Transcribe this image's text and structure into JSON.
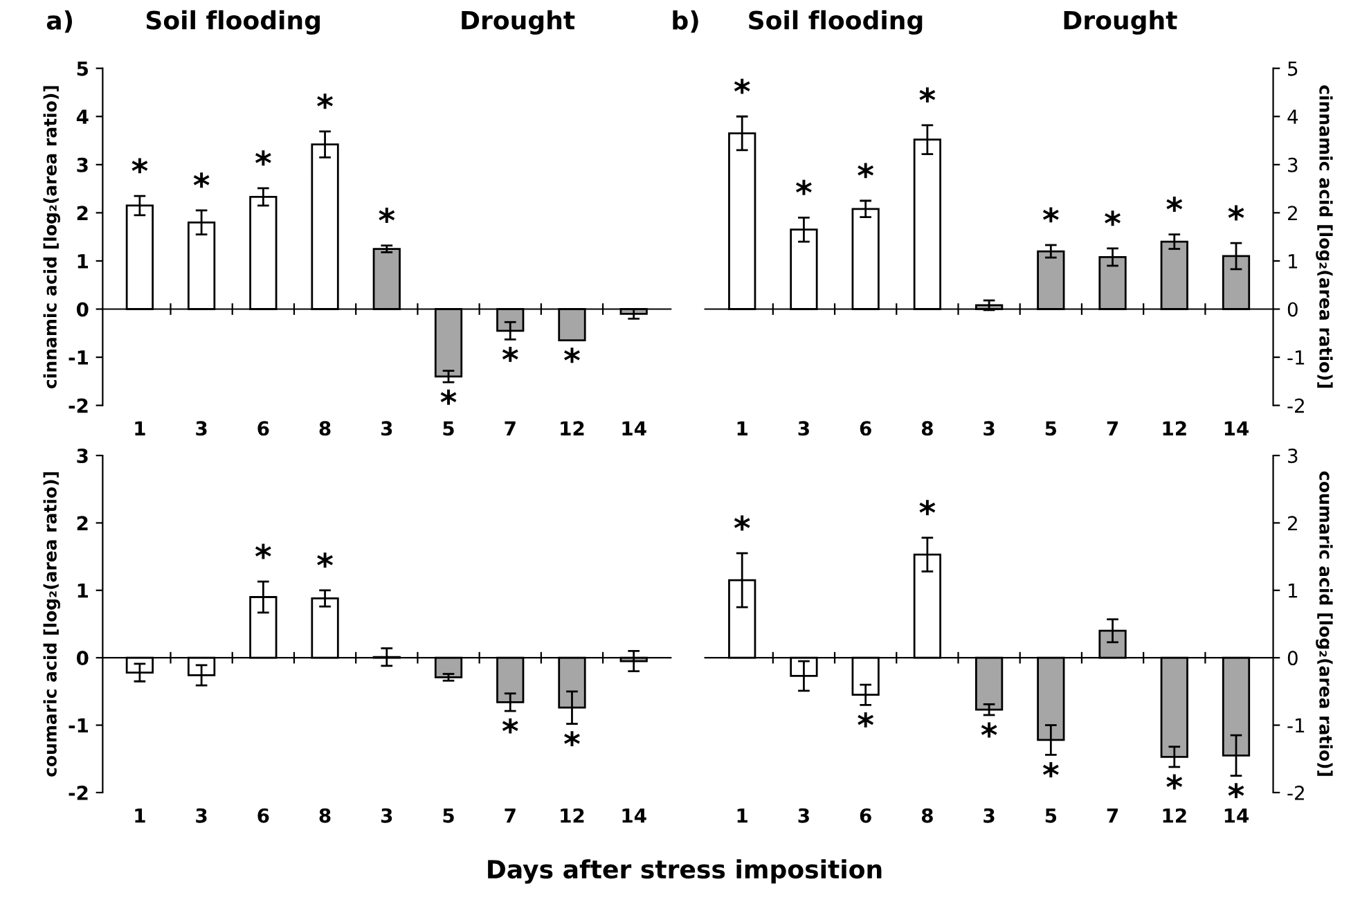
{
  "chart_data": [
    {
      "type": "bar",
      "title": "a)",
      "ylabel": "cinnamic acid [log₂(area ratio)]",
      "annotations": [
        "Soil flooding",
        "Drought"
      ],
      "categories": [
        "1",
        "3",
        "6",
        "8",
        "3",
        "5",
        "7",
        "12",
        "14"
      ],
      "ylim": [
        -2,
        5
      ],
      "yticks": [
        -2,
        -1,
        0,
        1,
        2,
        3,
        4,
        5
      ],
      "series": [
        {
          "values": [
            2.15,
            1.8,
            2.33,
            3.42,
            1.25,
            -1.4,
            -0.45,
            -0.65,
            -0.1
          ],
          "colors": [
            "#ffffff",
            "#ffffff",
            "#ffffff",
            "#ffffff",
            "#a6a6a6",
            "#a6a6a6",
            "#a6a6a6",
            "#a6a6a6",
            "#a6a6a6"
          ],
          "errors": [
            0.2,
            0.25,
            0.18,
            0.27,
            0.07,
            0.12,
            0.18,
            null,
            0.1
          ],
          "value_labels": [
            "*",
            "*",
            "*",
            "*",
            "*",
            "*",
            "*",
            "*",
            null
          ]
        }
      ]
    },
    {
      "type": "bar",
      "title": "b)",
      "y2label": "cinnamic acid [log₂(area ratio)]",
      "annotations": [
        "Soil flooding",
        "Drought"
      ],
      "categories": [
        "1",
        "3",
        "6",
        "8",
        "3",
        "5",
        "7",
        "12",
        "14"
      ],
      "y2lim": [
        -2,
        5
      ],
      "y2ticks": [
        -2,
        -1,
        0,
        1,
        2,
        3,
        4,
        5
      ],
      "series": [
        {
          "axis": "y2",
          "values": [
            3.65,
            1.65,
            2.08,
            3.52,
            0.08,
            1.2,
            1.08,
            1.4,
            1.1
          ],
          "colors": [
            "#ffffff",
            "#ffffff",
            "#ffffff",
            "#ffffff",
            "#a6a6a6",
            "#a6a6a6",
            "#a6a6a6",
            "#a6a6a6",
            "#a6a6a6"
          ],
          "errors": [
            0.35,
            0.25,
            0.17,
            0.3,
            0.1,
            0.13,
            0.18,
            0.15,
            0.27
          ],
          "value_labels": [
            "*",
            "*",
            "*",
            "*",
            null,
            "*",
            "*",
            "*",
            "*"
          ]
        }
      ]
    },
    {
      "type": "bar",
      "ylabel": "coumaric acid [log₂(area ratio)]",
      "xlabel": "Days after stress imposition",
      "categories": [
        "1",
        "3",
        "6",
        "8",
        "3",
        "5",
        "7",
        "12",
        "14"
      ],
      "ylim": [
        -2,
        3
      ],
      "yticks": [
        -2,
        -1,
        0,
        1,
        2,
        3
      ],
      "series": [
        {
          "values": [
            -0.22,
            -0.26,
            0.9,
            0.88,
            0.01,
            -0.29,
            -0.66,
            -0.74,
            -0.05
          ],
          "colors": [
            "#ffffff",
            "#ffffff",
            "#ffffff",
            "#ffffff",
            "#a6a6a6",
            "#a6a6a6",
            "#a6a6a6",
            "#a6a6a6",
            "#a6a6a6"
          ],
          "errors": [
            0.13,
            0.15,
            0.23,
            0.12,
            0.13,
            0.05,
            0.13,
            0.24,
            0.15
          ],
          "value_labels": [
            null,
            null,
            "*",
            "*",
            null,
            null,
            "*",
            "*",
            null
          ]
        }
      ]
    },
    {
      "type": "bar",
      "y2label": "coumaric acid [log₂(area ratio)]",
      "categories": [
        "1",
        "3",
        "6",
        "8",
        "3",
        "5",
        "7",
        "12",
        "14"
      ],
      "y2lim": [
        -2,
        3
      ],
      "y2ticks": [
        -2,
        -1,
        0,
        1,
        2,
        3
      ],
      "series": [
        {
          "axis": "y2",
          "values": [
            1.15,
            -0.27,
            -0.55,
            1.53,
            -0.77,
            -1.22,
            0.4,
            -1.47,
            -1.45
          ],
          "colors": [
            "#ffffff",
            "#ffffff",
            "#ffffff",
            "#ffffff",
            "#a6a6a6",
            "#a6a6a6",
            "#a6a6a6",
            "#a6a6a6",
            "#a6a6a6"
          ],
          "errors": [
            0.4,
            0.22,
            0.15,
            0.25,
            0.08,
            0.22,
            0.17,
            0.15,
            0.3
          ],
          "value_labels": [
            "*",
            null,
            "*",
            "*",
            "*",
            "*",
            null,
            "*",
            "*"
          ]
        }
      ]
    }
  ]
}
